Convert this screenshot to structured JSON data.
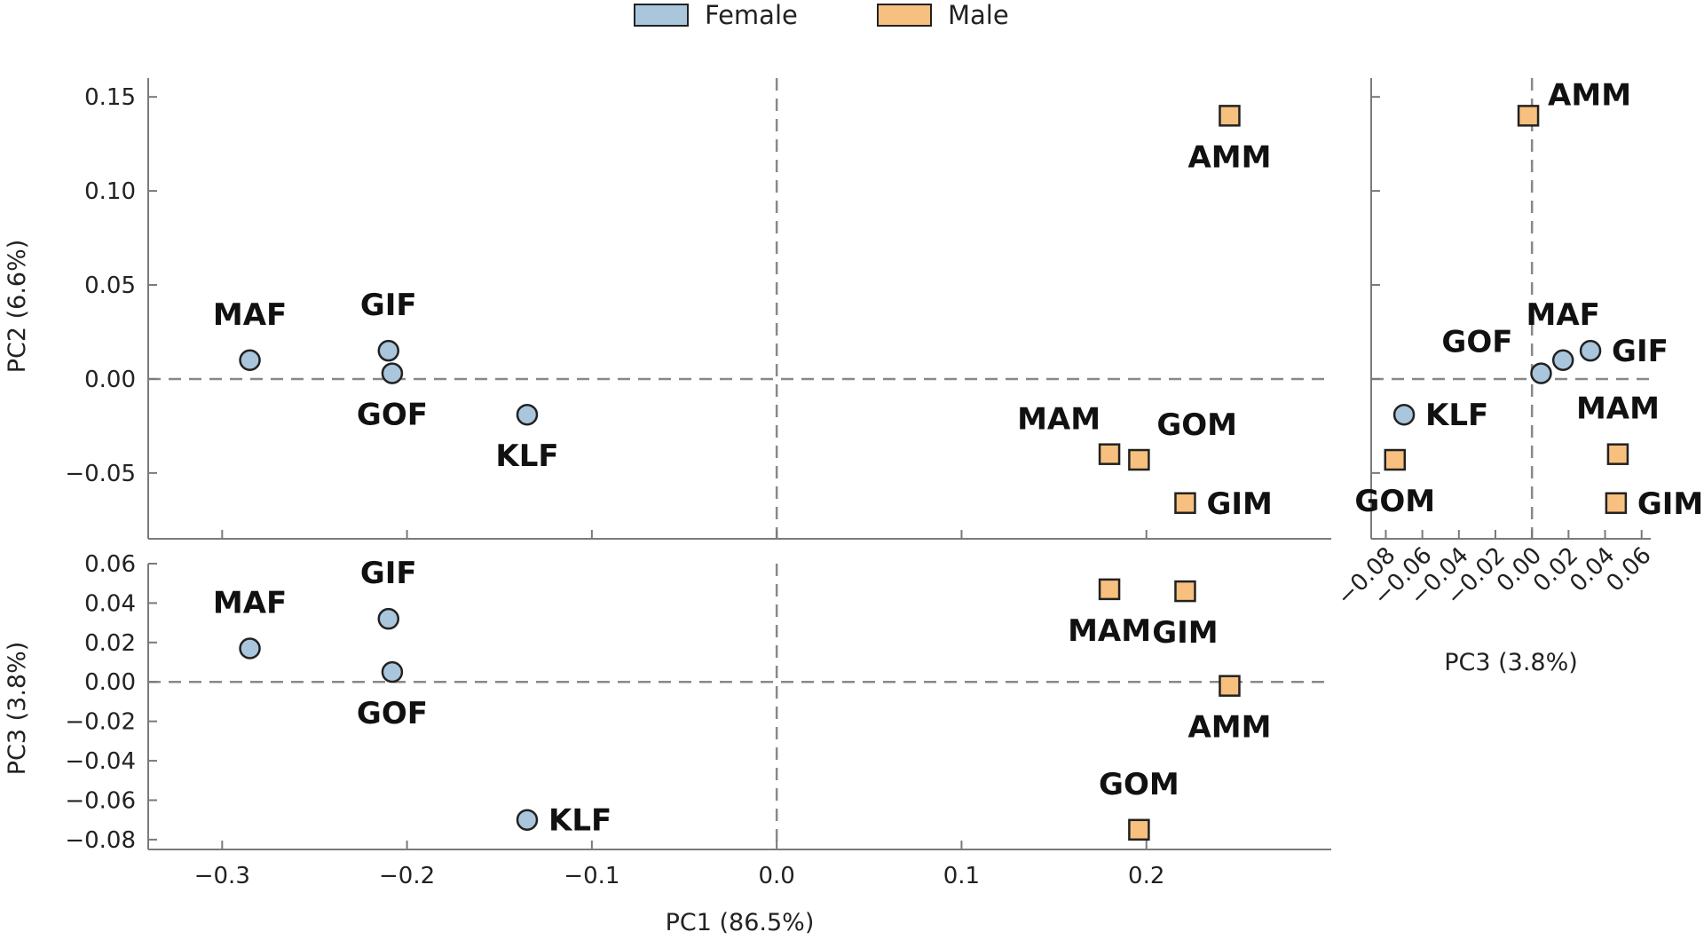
{
  "legend": {
    "female_label": "Female",
    "male_label": "Male",
    "female_color": "#a9c6dc",
    "male_color": "#f7c07f"
  },
  "chart_data": [
    {
      "id": "pc1_pc2",
      "type": "scatter",
      "xlabel": "",
      "ylabel": "PC2 (6.6%)",
      "xlim": [
        -0.34,
        0.3
      ],
      "ylim": [
        -0.085,
        0.16
      ],
      "xticks": [
        -0.3,
        -0.2,
        -0.1,
        0.0,
        0.1,
        0.2
      ],
      "yticks": [
        -0.05,
        0.0,
        0.05,
        0.1,
        0.15
      ],
      "ytick_labels": [
        "−0.05",
        "0.00",
        "0.05",
        "0.10",
        "0.15"
      ],
      "xtick_labels": [],
      "zero_lines": true,
      "points": [
        {
          "label": "MAF",
          "group": "Female",
          "x": -0.285,
          "y": 0.01,
          "pos": "above"
        },
        {
          "label": "GIF",
          "group": "Female",
          "x": -0.21,
          "y": 0.015,
          "pos": "above"
        },
        {
          "label": "GOF",
          "group": "Female",
          "x": -0.208,
          "y": 0.003,
          "pos": "below"
        },
        {
          "label": "KLF",
          "group": "Female",
          "x": -0.135,
          "y": -0.019,
          "pos": "below"
        },
        {
          "label": "AMM",
          "group": "Male",
          "x": 0.245,
          "y": 0.14,
          "pos": "below"
        },
        {
          "label": "MAM",
          "group": "Male",
          "x": 0.18,
          "y": -0.04,
          "pos": "above-left"
        },
        {
          "label": "GOM",
          "group": "Male",
          "x": 0.196,
          "y": -0.043,
          "pos": "above-right"
        },
        {
          "label": "GIM",
          "group": "Male",
          "x": 0.221,
          "y": -0.066,
          "pos": "right"
        }
      ]
    },
    {
      "id": "pc1_pc3",
      "type": "scatter",
      "xlabel": "PC1 (86.5%)",
      "ylabel": "PC3 (3.8%)",
      "xlim": [
        -0.34,
        0.3
      ],
      "ylim": [
        -0.085,
        0.06
      ],
      "xticks": [
        -0.3,
        -0.2,
        -0.1,
        0.0,
        0.1,
        0.2
      ],
      "xtick_labels": [
        "−0.3",
        "−0.2",
        "−0.1",
        "0.0",
        "0.1",
        "0.2"
      ],
      "yticks": [
        -0.08,
        -0.06,
        -0.04,
        -0.02,
        0.0,
        0.02,
        0.04,
        0.06
      ],
      "ytick_labels": [
        "−0.08",
        "−0.06",
        "−0.04",
        "−0.02",
        "0.00",
        "0.02",
        "0.04",
        "0.06"
      ],
      "zero_lines": true,
      "points": [
        {
          "label": "MAF",
          "group": "Female",
          "x": -0.285,
          "y": 0.017,
          "pos": "above"
        },
        {
          "label": "GIF",
          "group": "Female",
          "x": -0.21,
          "y": 0.032,
          "pos": "above"
        },
        {
          "label": "GOF",
          "group": "Female",
          "x": -0.208,
          "y": 0.005,
          "pos": "below"
        },
        {
          "label": "KLF",
          "group": "Female",
          "x": -0.135,
          "y": -0.07,
          "pos": "right"
        },
        {
          "label": "MAM",
          "group": "Male",
          "x": 0.18,
          "y": 0.047,
          "pos": "below"
        },
        {
          "label": "GIM",
          "group": "Male",
          "x": 0.221,
          "y": 0.046,
          "pos": "below"
        },
        {
          "label": "AMM",
          "group": "Male",
          "x": 0.245,
          "y": -0.002,
          "pos": "below"
        },
        {
          "label": "GOM",
          "group": "Male",
          "x": 0.196,
          "y": -0.075,
          "pos": "above"
        }
      ]
    },
    {
      "id": "pc3_pc2",
      "type": "scatter",
      "xlabel": "PC3 (3.8%)",
      "ylabel": "",
      "xlim": [
        -0.088,
        0.065
      ],
      "ylim": [
        -0.085,
        0.16
      ],
      "xticks": [
        -0.08,
        -0.06,
        -0.04,
        -0.02,
        0.0,
        0.02,
        0.04,
        0.06
      ],
      "xtick_labels": [
        "−0.08",
        "−0.06",
        "−0.04",
        "−0.02",
        "0.00",
        "0.02",
        "0.04",
        "0.06"
      ],
      "yticks": [
        -0.05,
        0.0,
        0.05,
        0.1,
        0.15
      ],
      "ytick_labels": [],
      "zero_lines": true,
      "points": [
        {
          "label": "AMM",
          "group": "Male",
          "x": -0.002,
          "y": 0.14,
          "pos": "right-up"
        },
        {
          "label": "MAF",
          "group": "Female",
          "x": 0.017,
          "y": 0.01,
          "pos": "above"
        },
        {
          "label": "GIF",
          "group": "Female",
          "x": 0.032,
          "y": 0.015,
          "pos": "right"
        },
        {
          "label": "GOF",
          "group": "Female",
          "x": 0.005,
          "y": 0.003,
          "pos": "left-up"
        },
        {
          "label": "KLF",
          "group": "Female",
          "x": -0.07,
          "y": -0.019,
          "pos": "right"
        },
        {
          "label": "MAM",
          "group": "Male",
          "x": 0.047,
          "y": -0.04,
          "pos": "above"
        },
        {
          "label": "GIM",
          "group": "Male",
          "x": 0.046,
          "y": -0.066,
          "pos": "right"
        },
        {
          "label": "GOM",
          "group": "Male",
          "x": -0.075,
          "y": -0.043,
          "pos": "below"
        }
      ]
    }
  ]
}
